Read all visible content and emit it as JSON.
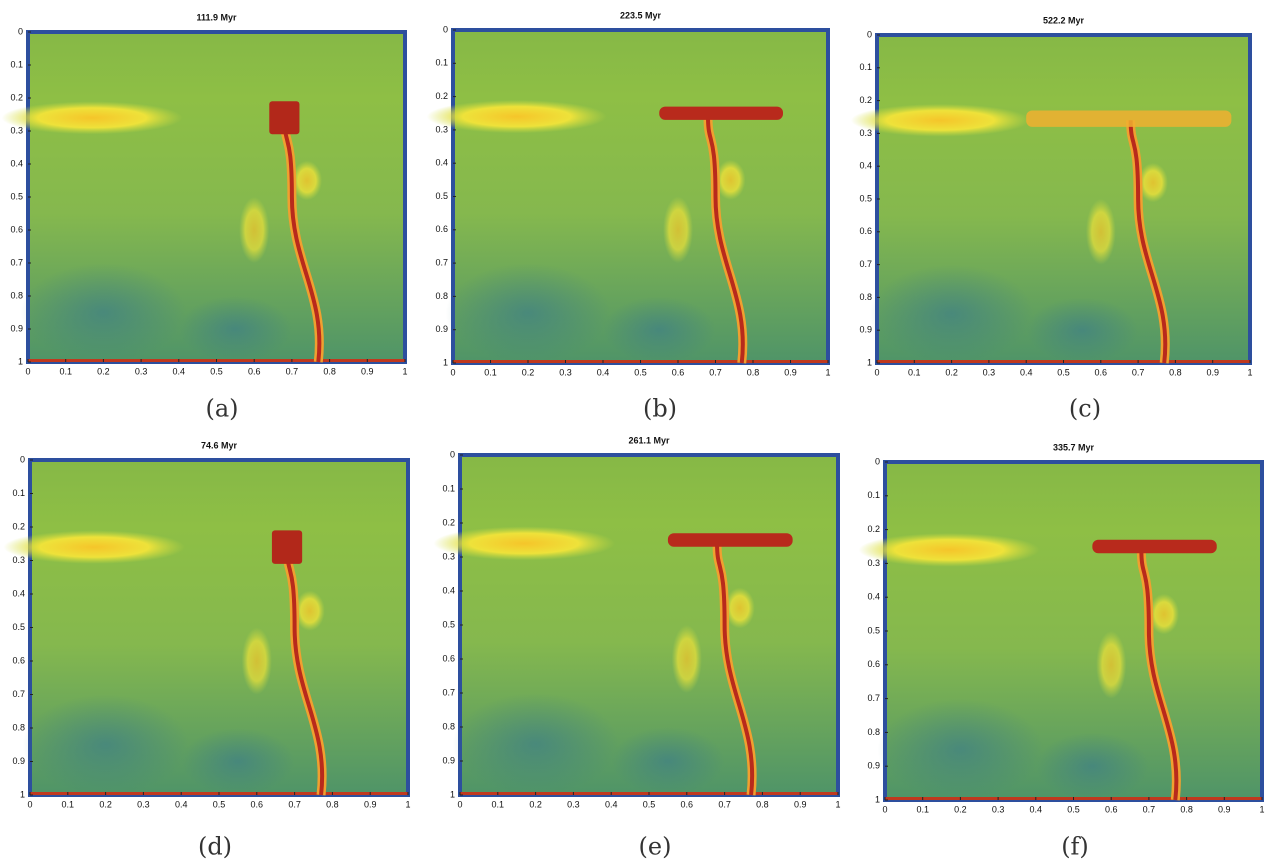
{
  "axes": {
    "xlim": [
      0,
      1
    ],
    "ylim": [
      0,
      1
    ],
    "y_reversed": true,
    "xticks": [
      0,
      0.1,
      0.2,
      0.3,
      0.4,
      0.5,
      0.6,
      0.7,
      0.8,
      0.9,
      1
    ],
    "yticks": [
      0,
      0.1,
      0.2,
      0.3,
      0.4,
      0.5,
      0.6,
      0.7,
      0.8,
      0.9,
      1
    ]
  },
  "panels": [
    {
      "title": "111.9 Myr",
      "caption": "(a)"
    },
    {
      "title": "223.5 Myr",
      "caption": "(b)"
    },
    {
      "title": "522.2 Myr",
      "caption": "(c)"
    },
    {
      "title": "74.6 Myr",
      "caption": "(d)"
    },
    {
      "title": "261.1 Myr",
      "caption": "(e)"
    },
    {
      "title": "335.7 Myr",
      "caption": "(f)"
    }
  ]
}
